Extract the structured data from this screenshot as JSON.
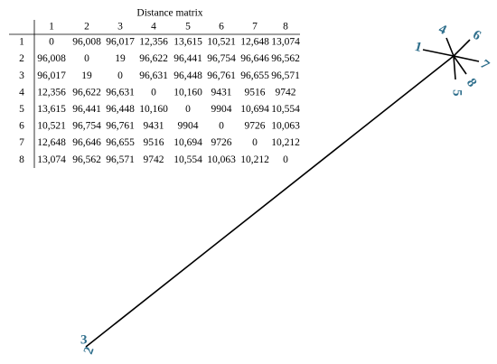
{
  "table": {
    "title": "Distance matrix",
    "columns": [
      "1",
      "2",
      "3",
      "4",
      "5",
      "6",
      "7",
      "8"
    ],
    "rows": [
      [
        "1",
        "0",
        "96,008",
        "96,017",
        "12,356",
        "13,615",
        "10,521",
        "12,648",
        "13,074"
      ],
      [
        "2",
        "96,008",
        "0",
        "19",
        "96,622",
        "96,441",
        "96,754",
        "96,646",
        "96,562"
      ],
      [
        "3",
        "96,017",
        "19",
        "0",
        "96,631",
        "96,448",
        "96,761",
        "96,655",
        "96,571"
      ],
      [
        "4",
        "12,356",
        "96,622",
        "96,631",
        "0",
        "10,160",
        "9431",
        "9516",
        "9742"
      ],
      [
        "5",
        "13,615",
        "96,441",
        "96,448",
        "10,160",
        "0",
        "9904",
        "10,694",
        "10,554"
      ],
      [
        "6",
        "10,521",
        "96,754",
        "96,761",
        "9431",
        "9904",
        "0",
        "9726",
        "10,063"
      ],
      [
        "7",
        "12,648",
        "96,646",
        "96,655",
        "9516",
        "10,694",
        "9726",
        "0",
        "10,212"
      ],
      [
        "8",
        "13,074",
        "96,562",
        "96,571",
        "9742",
        "10,554",
        "10,063",
        "10,212",
        "0"
      ]
    ]
  },
  "tree": {
    "leaves": [
      "1",
      "2",
      "3",
      "4",
      "5",
      "6",
      "7",
      "8"
    ]
  }
}
